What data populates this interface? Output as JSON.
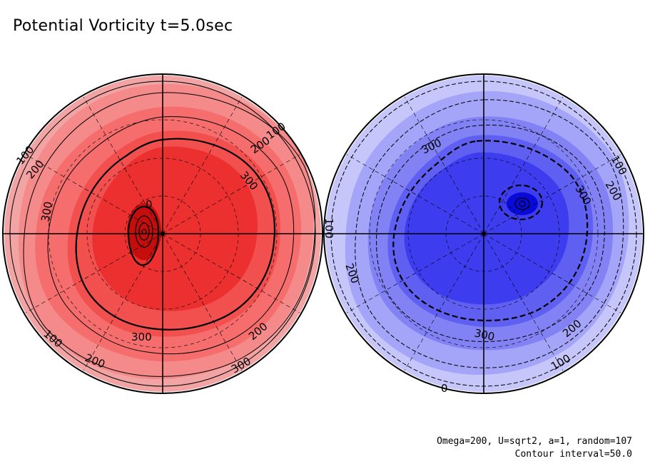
{
  "title": "Potential Vorticity t=5.0sec",
  "footer": {
    "params": "Omega=200, U=sqrt2, a=1, random=107",
    "contour_interval": "Contour interval=50.0"
  },
  "hemispheres": [
    {
      "id": "north",
      "sign": "positive",
      "fills": [
        "#f2a4a4",
        "#f58a8a",
        "#f56d6d",
        "#f24f4f",
        "#ec2f2f"
      ],
      "core_color": "#c40d0d",
      "line_style": "solid",
      "contour_labels": [
        "100",
        "200",
        "300",
        "100",
        "200",
        "300",
        "300",
        "100",
        "200",
        "200",
        "300",
        "0"
      ]
    },
    {
      "id": "south",
      "sign": "negative",
      "fills": [
        "#c6c6fa",
        "#a4a4f8",
        "#8282f5",
        "#5f5ff2",
        "#3d3def"
      ],
      "core_color": "#0a0ad8",
      "line_style": "dashed",
      "contour_labels": [
        "100",
        "200",
        "300",
        "100",
        "200",
        "300",
        "300",
        "200",
        "100",
        "0"
      ]
    }
  ]
}
